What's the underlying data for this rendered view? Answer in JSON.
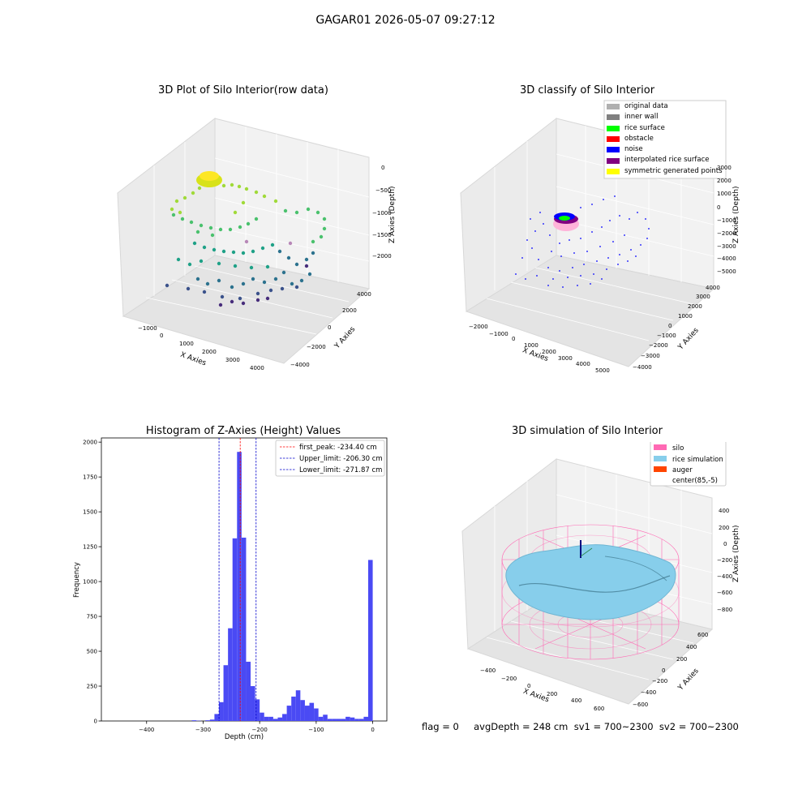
{
  "suptitle": "GAGAR01 2026-05-07 09:27:12",
  "footer": "flag = 0     avgDepth = 248 cm  sv1 = 700~2300  sv2 = 700~2300",
  "chart_data": [
    {
      "type": "scatter",
      "title": "3D Plot of Silo Interior(row data)",
      "xlabel": "X Axies",
      "ylabel": "Y Axies",
      "zlabel": "Z Axies (Depth)",
      "xticks": [
        "−1000",
        "0",
        "1000",
        "2000",
        "3000",
        "4000"
      ],
      "yticks": [
        "−4000",
        "−2000",
        "0",
        "2000",
        "4000"
      ],
      "zticks": [
        "0",
        "−500",
        "−1000",
        "−1500",
        "−2000"
      ],
      "colormap": "viridis"
    },
    {
      "type": "scatter",
      "title": "3D classify of Silo Interior",
      "xlabel": "X Axies",
      "ylabel": "Y Axies",
      "zlabel": "Z Axies (Depth)",
      "xticks": [
        "−2000",
        "−1000",
        "0",
        "1000",
        "2000",
        "3000",
        "4000",
        "5000"
      ],
      "yticks": [
        "−4000",
        "−3000",
        "−2000",
        "−1000",
        "0",
        "1000",
        "2000",
        "3000",
        "4000"
      ],
      "zticks": [
        "3000",
        "2000",
        "1000",
        "0",
        "−1000",
        "−2000",
        "−3000",
        "−4000",
        "−5000"
      ],
      "legend": [
        {
          "label": "original data",
          "color": "#b0b0b0"
        },
        {
          "label": "inner wall",
          "color": "#808080"
        },
        {
          "label": "rice surface",
          "color": "#00ff00"
        },
        {
          "label": "obstacle",
          "color": "#ff0000"
        },
        {
          "label": "noise",
          "color": "#0000ff"
        },
        {
          "label": "interpolated rice surface",
          "color": "#800080"
        },
        {
          "label": "symmetric generated points",
          "color": "#ffff00"
        }
      ]
    },
    {
      "type": "bar",
      "title": "Histogram of Z-Axies (Height) Values",
      "xlabel": "Depth (cm)",
      "ylabel": "Frequency",
      "xlim": [
        -480,
        25
      ],
      "ylim": [
        0,
        2030
      ],
      "xticks": [
        -400,
        -300,
        -200,
        -100,
        0
      ],
      "yticks": [
        0,
        250,
        500,
        750,
        1000,
        1250,
        1500,
        1750,
        2000
      ],
      "bin_width": 8,
      "bins": [
        {
          "x": -320,
          "value": 5
        },
        {
          "x": -312,
          "value": 2
        },
        {
          "x": -296,
          "value": 5
        },
        {
          "x": -288,
          "value": 10
        },
        {
          "x": -280,
          "value": 50
        },
        {
          "x": -272,
          "value": 135
        },
        {
          "x": -264,
          "value": 400
        },
        {
          "x": -256,
          "value": 665
        },
        {
          "x": -248,
          "value": 1310
        },
        {
          "x": -240,
          "value": 1930
        },
        {
          "x": -232,
          "value": 1315
        },
        {
          "x": -224,
          "value": 425
        },
        {
          "x": -216,
          "value": 250
        },
        {
          "x": -208,
          "value": 155
        },
        {
          "x": -200,
          "value": 60
        },
        {
          "x": -192,
          "value": 30
        },
        {
          "x": -184,
          "value": 30
        },
        {
          "x": -176,
          "value": 15
        },
        {
          "x": -168,
          "value": 25
        },
        {
          "x": -160,
          "value": 50
        },
        {
          "x": -152,
          "value": 110
        },
        {
          "x": -144,
          "value": 175
        },
        {
          "x": -136,
          "value": 220
        },
        {
          "x": -128,
          "value": 150
        },
        {
          "x": -120,
          "value": 110
        },
        {
          "x": -112,
          "value": 130
        },
        {
          "x": -104,
          "value": 90
        },
        {
          "x": -96,
          "value": 30
        },
        {
          "x": -88,
          "value": 45
        },
        {
          "x": -80,
          "value": 15
        },
        {
          "x": -72,
          "value": 15
        },
        {
          "x": -64,
          "value": 15
        },
        {
          "x": -56,
          "value": 15
        },
        {
          "x": -48,
          "value": 30
        },
        {
          "x": -40,
          "value": 25
        },
        {
          "x": -32,
          "value": 15
        },
        {
          "x": -24,
          "value": 15
        },
        {
          "x": -16,
          "value": 30
        },
        {
          "x": -8,
          "value": 1155
        }
      ],
      "bar_color": "#4a4af4",
      "vlines": [
        {
          "label": "first_peak: -234.40 cm",
          "x": -234.4,
          "color": "#ff0000"
        },
        {
          "label": "Upper_limit: -206.30 cm",
          "x": -206.3,
          "color": "#0000cc"
        },
        {
          "label": "Lower_limit: -271.87 cm",
          "x": -271.87,
          "color": "#0000cc"
        }
      ],
      "legend_position": "upper right"
    },
    {
      "type": "surface",
      "title": "3D simulation of Silo Interior",
      "xlabel": "X Axies",
      "ylabel": "Y Axies",
      "zlabel": "Z Axies (Depth)",
      "xticks": [
        "−400",
        "−200",
        "0",
        "200",
        "400",
        "600"
      ],
      "yticks": [
        "−600",
        "−400",
        "−200",
        "0",
        "200",
        "400",
        "600"
      ],
      "zticks": [
        "400",
        "200",
        "0",
        "−200",
        "−400",
        "−600",
        "−800"
      ],
      "legend": [
        {
          "label": "silo",
          "color": "#ff69b4"
        },
        {
          "label": "rice simulation",
          "color": "#87ceeb"
        },
        {
          "label": "auger",
          "color": "#ff4500"
        },
        {
          "label": "center(85,-5)",
          "color": ""
        }
      ]
    }
  ]
}
